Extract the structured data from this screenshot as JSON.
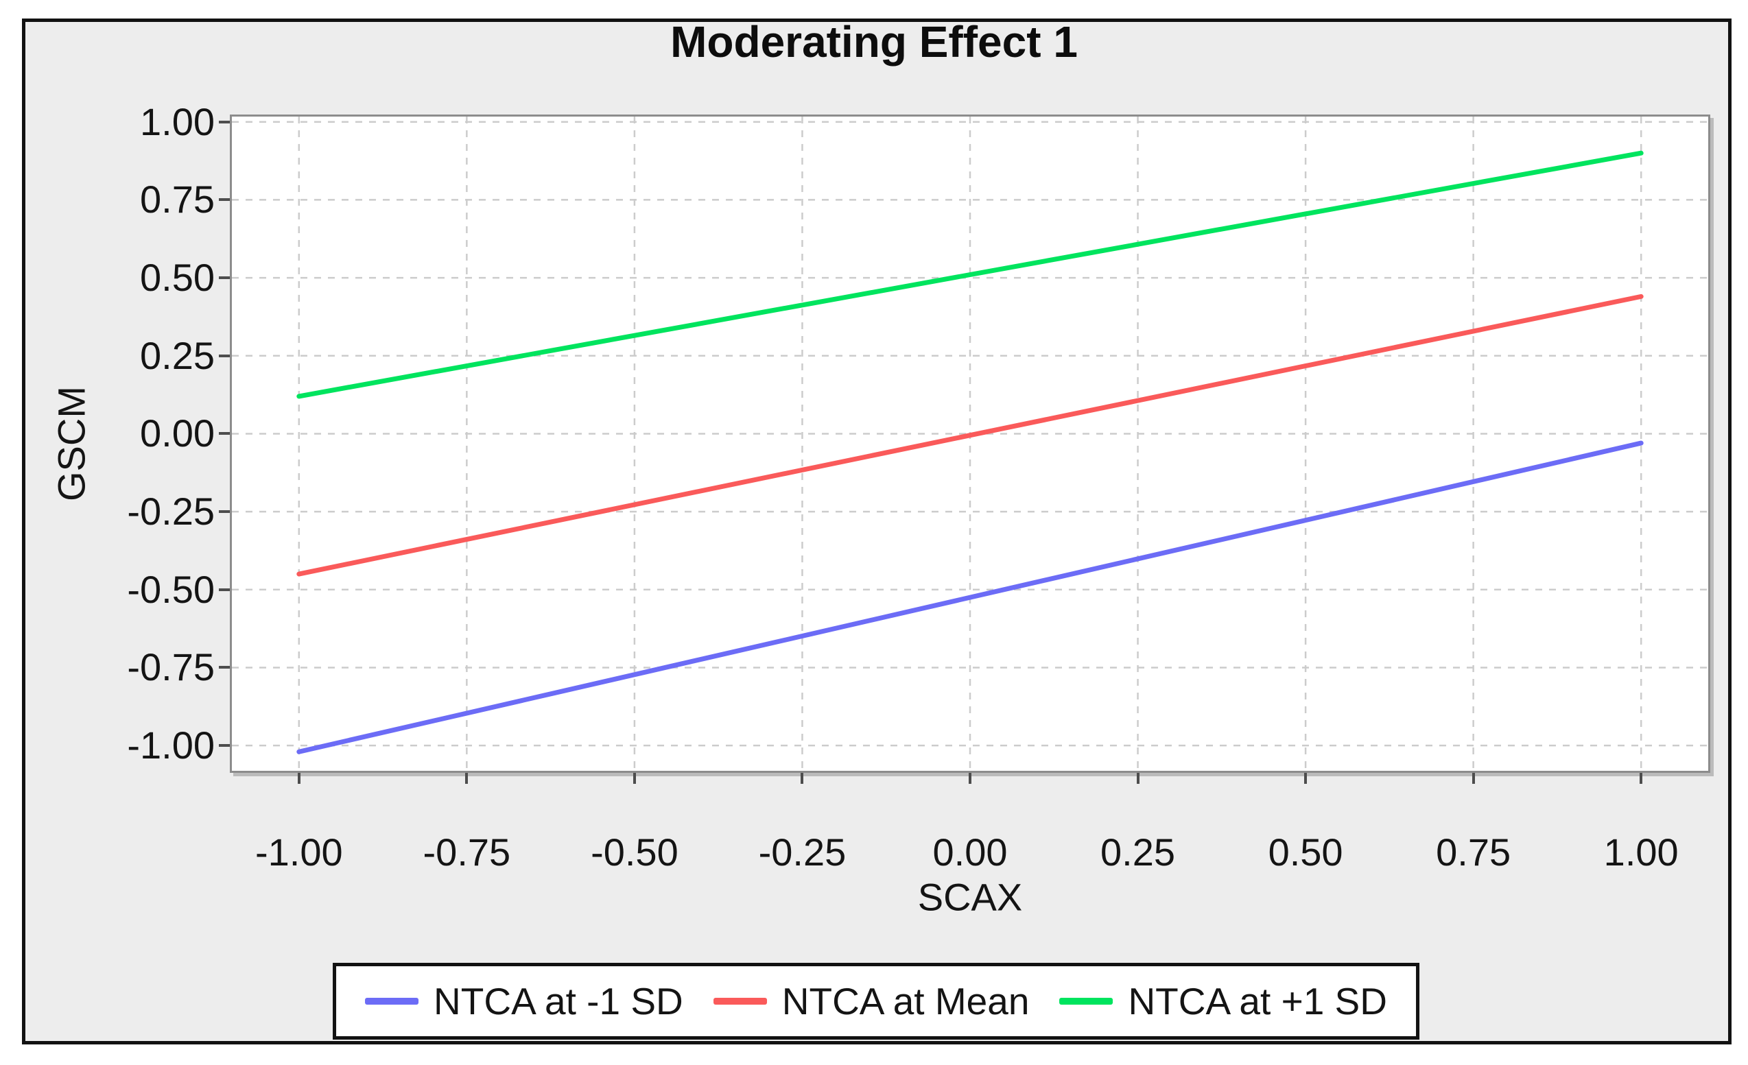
{
  "window": {
    "outer_background": "#ffffff",
    "canvas_background": "#ededed",
    "frame_border_color": "#121212"
  },
  "chart_data": {
    "type": "line",
    "title": "Moderating Effect 1",
    "xlabel": "SCAX",
    "ylabel": "GSCM",
    "xlim": [
      -1.1,
      1.1
    ],
    "ylim": [
      -1.081,
      1.017
    ],
    "x_ticks": [
      -1.0,
      -0.75,
      -0.5,
      -0.25,
      0.0,
      0.25,
      0.5,
      0.75,
      1.0
    ],
    "x_tick_labels": [
      "-1.00",
      "-0.75",
      "-0.50",
      "-0.25",
      "0.00",
      "0.25",
      "0.50",
      "0.75",
      "1.00"
    ],
    "y_ticks": [
      -1.0,
      -0.75,
      -0.5,
      -0.25,
      0.0,
      0.25,
      0.5,
      0.75,
      1.0
    ],
    "y_tick_labels": [
      "-1.00",
      "-0.75",
      "-0.50",
      "-0.25",
      "0.00",
      "0.25",
      "0.50",
      "0.75",
      "1.00"
    ],
    "grid": "dashed",
    "legend_position": "bottom-center",
    "series": [
      {
        "name": "NTCA at -1 SD",
        "color": "#6c6cf6",
        "x": [
          -1.0,
          1.0
        ],
        "y": [
          -1.02,
          -0.03
        ]
      },
      {
        "name": "NTCA at Mean",
        "color": "#fa5a5a",
        "x": [
          -1.0,
          1.0
        ],
        "y": [
          -0.45,
          0.44
        ]
      },
      {
        "name": "NTCA at +1 SD",
        "color": "#00e45e",
        "x": [
          -1.0,
          1.0
        ],
        "y": [
          0.12,
          0.9
        ]
      }
    ],
    "styles": {
      "plot_background": "#ffffff",
      "plot_border_color": "#8c8c8c",
      "grid_color": "#cccccc",
      "tick_color": "#4d4d4d",
      "text_color": "#141414",
      "series_line_width": 7
    }
  }
}
